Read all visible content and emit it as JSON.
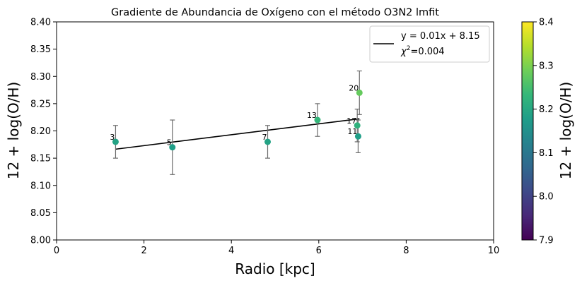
{
  "chart_data": {
    "type": "scatter",
    "title": "Gradiente de Abundancia de Oxígeno con el método O3N2 lmfit",
    "xlabel": "Radio [kpc]",
    "ylabel": "12 + log(O/H)",
    "xlim": [
      0,
      10
    ],
    "ylim": [
      8.0,
      8.4
    ],
    "x_ticks": [
      "0",
      "2",
      "4",
      "6",
      "8",
      "10"
    ],
    "y_ticks": [
      "8.00",
      "8.05",
      "8.10",
      "8.15",
      "8.20",
      "8.25",
      "8.30",
      "8.35",
      "8.40"
    ],
    "points": [
      {
        "label": "3",
        "x": 1.35,
        "y": 8.18,
        "err": 0.03,
        "c": 8.19
      },
      {
        "label": "5",
        "x": 2.65,
        "y": 8.17,
        "err": 0.05,
        "c": 8.18
      },
      {
        "label": "7",
        "x": 4.83,
        "y": 8.18,
        "err": 0.03,
        "c": 8.19
      },
      {
        "label": "13",
        "x": 5.97,
        "y": 8.22,
        "err": 0.03,
        "c": 8.23
      },
      {
        "label": "17",
        "x": 6.88,
        "y": 8.21,
        "err": 0.03,
        "c": 8.22
      },
      {
        "label": "11",
        "x": 6.9,
        "y": 8.19,
        "err": 0.03,
        "c": 8.18
      },
      {
        "label": "20",
        "x": 6.93,
        "y": 8.27,
        "err": 0.04,
        "c": 8.28
      }
    ],
    "fit_line": {
      "x": [
        1.35,
        6.93
      ],
      "y": [
        8.1665,
        8.2223
      ]
    },
    "legend": {
      "equation": "y = 0.01x + 8.15",
      "chi_symbol": "χ",
      "chi_exp": "2",
      "chi_value": "=0.004",
      "placement": "top-right"
    },
    "colorbar": {
      "label": "12 + log(O/H)",
      "range": [
        7.9,
        8.4
      ],
      "ticks": [
        "7.9",
        "8.0",
        "8.1",
        "8.2",
        "8.3",
        "8.4"
      ],
      "colormap": [
        "#440154",
        "#482878",
        "#3e4989",
        "#31688e",
        "#26828e",
        "#1f9e89",
        "#35b779",
        "#6ece58",
        "#b5de2b",
        "#fde725"
      ]
    }
  }
}
